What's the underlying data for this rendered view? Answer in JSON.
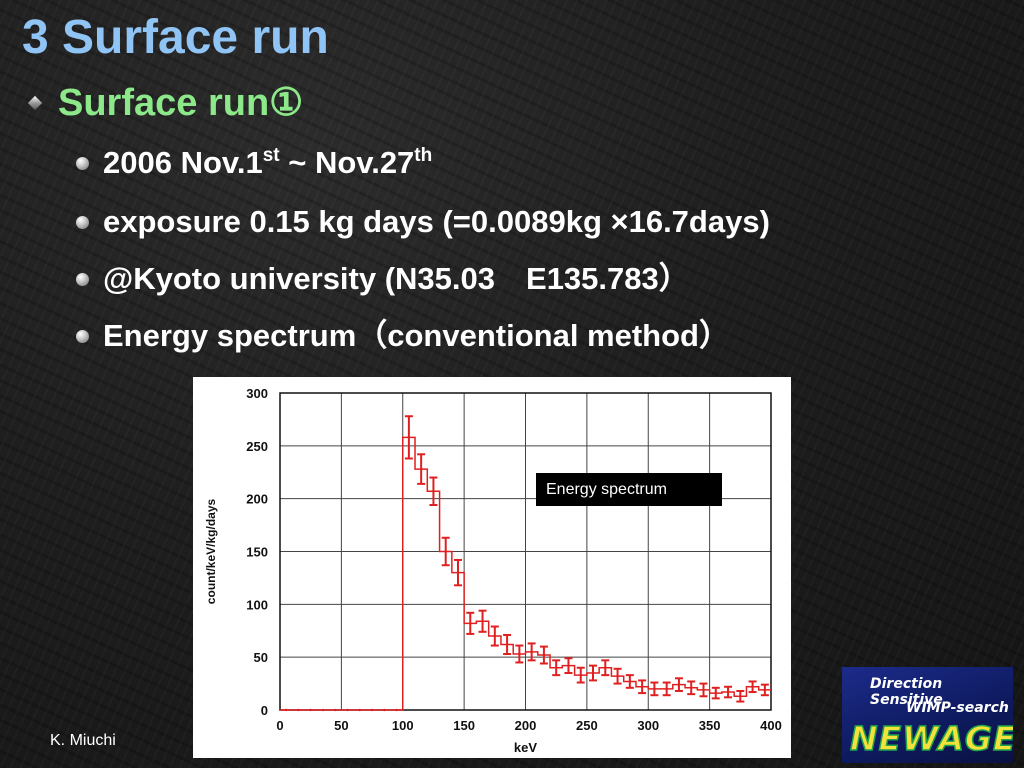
{
  "slide": {
    "title": "3 Surface run",
    "heading": "Surface run①",
    "bullets": [
      {
        "main": "2006 Nov.1",
        "sup1": "st",
        "mid": " ~ Nov.27",
        "sup2": "th"
      },
      {
        "text": "exposure 0.15 kg days (=0.0089kg ×16.7days)"
      },
      {
        "text": "@Kyoto university (N35.03 E135.783）"
      },
      {
        "text": "Energy spectrum（conventional method）"
      }
    ],
    "author": "K. Miuchi"
  },
  "logo": {
    "line1": "Direction Sensitive",
    "line2": "WIMP-search",
    "line3": "NEWAGE"
  },
  "colors": {
    "title": "#8fc4f4",
    "heading": "#8de88a",
    "series": "#e02020"
  },
  "chart_data": {
    "type": "line",
    "xlabel": "keV",
    "ylabel": "count/keV/kg/days",
    "legend_label": "Energy spectrum",
    "legend_position": "top-right",
    "grid": true,
    "xlim": [
      0,
      400
    ],
    "ylim": [
      0,
      300
    ],
    "xticks": [
      0,
      50,
      100,
      150,
      200,
      250,
      300,
      350,
      400
    ],
    "yticks": [
      0,
      50,
      100,
      150,
      200,
      250,
      300
    ],
    "series": [
      {
        "step": "histogram",
        "bins_keV": [
          [
            0,
            0
          ],
          [
            10,
            0
          ],
          [
            20,
            0
          ],
          [
            30,
            0
          ],
          [
            40,
            0
          ],
          [
            50,
            0
          ],
          [
            60,
            0
          ],
          [
            70,
            0
          ],
          [
            80,
            0
          ],
          [
            90,
            0
          ],
          [
            100,
            258
          ],
          [
            110,
            228
          ],
          [
            120,
            207
          ],
          [
            130,
            150
          ],
          [
            140,
            130
          ],
          [
            150,
            82
          ],
          [
            160,
            84
          ],
          [
            170,
            70
          ],
          [
            180,
            62
          ],
          [
            190,
            53
          ],
          [
            200,
            55
          ],
          [
            210,
            52
          ],
          [
            220,
            40
          ],
          [
            230,
            42
          ],
          [
            240,
            33
          ],
          [
            250,
            35
          ],
          [
            260,
            40
          ],
          [
            270,
            32
          ],
          [
            280,
            27
          ],
          [
            290,
            22
          ],
          [
            300,
            20
          ],
          [
            310,
            20
          ],
          [
            320,
            24
          ],
          [
            330,
            21
          ],
          [
            340,
            19
          ],
          [
            350,
            16
          ],
          [
            360,
            17
          ],
          [
            370,
            13
          ],
          [
            380,
            22
          ],
          [
            390,
            19
          ]
        ],
        "errors": [
          0,
          0,
          0,
          0,
          0,
          0,
          0,
          0,
          0,
          0,
          20,
          14,
          13,
          13,
          12,
          10,
          10,
          9,
          9,
          8,
          8,
          8,
          7,
          7,
          7,
          7,
          7,
          7,
          6,
          6,
          6,
          6,
          6,
          6,
          6,
          5,
          5,
          5,
          5,
          5
        ]
      }
    ]
  }
}
